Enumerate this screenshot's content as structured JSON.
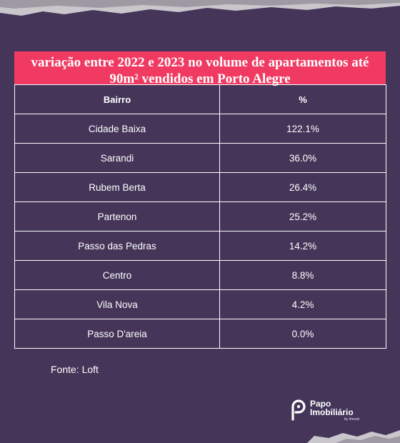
{
  "chart_data": {
    "type": "table",
    "title": "variação entre 2022 e 2023 no volume de apartamentos até 90m² vendidos em Porto Alegre",
    "columns": [
      "Bairro",
      "%"
    ],
    "rows": [
      {
        "bairro": "Cidade Baixa",
        "pct": "122.1%"
      },
      {
        "bairro": "Sarandi",
        "pct": "36.0%"
      },
      {
        "bairro": "Rubem Berta",
        "pct": "26.4%"
      },
      {
        "bairro": "Partenon",
        "pct": "25.2%"
      },
      {
        "bairro": "Passo das Pedras",
        "pct": "14.2%"
      },
      {
        "bairro": "Centro",
        "pct": "8.8%"
      },
      {
        "bairro": "Vila Nova",
        "pct": "4.2%"
      },
      {
        "bairro": "Passo D'areia",
        "pct": "0.0%"
      }
    ]
  },
  "source": "Fonte: Loft",
  "logo": {
    "line1": "Papo",
    "line2": "Imobiliário",
    "by": "by Imovel"
  },
  "colors": {
    "background": "#443559",
    "title_band": "#f03a62",
    "grid": "#ffffff"
  }
}
